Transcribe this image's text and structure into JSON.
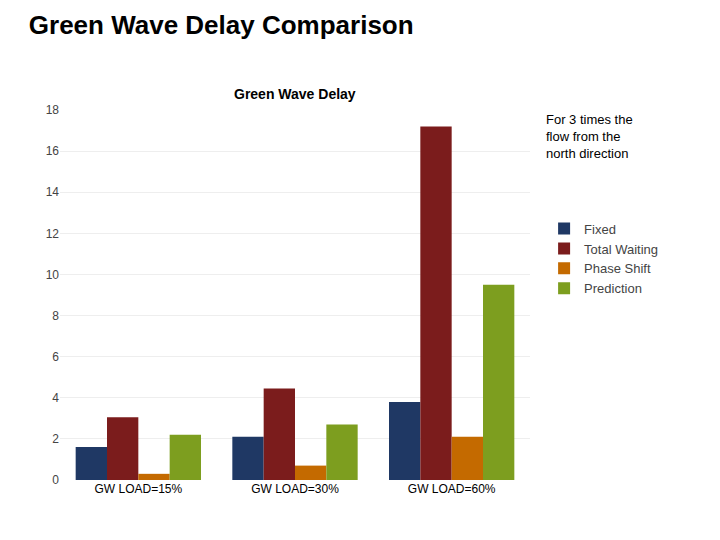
{
  "chart_data": {
    "type": "bar",
    "title": "Green Wave Delay Comparison",
    "subtitle": "Green Wave Delay",
    "annotation": "For 3 times the\nflow from the\nnorth direction",
    "categories": [
      "GW LOAD=15%",
      "GW LOAD=30%",
      "GW LOAD=60%"
    ],
    "series": [
      {
        "name": "Fixed",
        "color": "#1F3864",
        "values": [
          1.6,
          2.1,
          3.8
        ]
      },
      {
        "name": "Total Waiting",
        "color": "#7B1C1C",
        "values": [
          3.05,
          4.45,
          17.2
        ]
      },
      {
        "name": "Phase Shift",
        "color": "#C46A00",
        "values": [
          0.3,
          0.7,
          2.1
        ]
      },
      {
        "name": "Prediction",
        "color": "#7D9E1F",
        "values": [
          2.2,
          2.7,
          9.5
        ]
      }
    ],
    "ylim": [
      0,
      18
    ],
    "yticks": [
      0,
      2,
      4,
      6,
      8,
      10,
      12,
      14,
      16,
      18
    ],
    "grid": true,
    "legend": "right"
  }
}
